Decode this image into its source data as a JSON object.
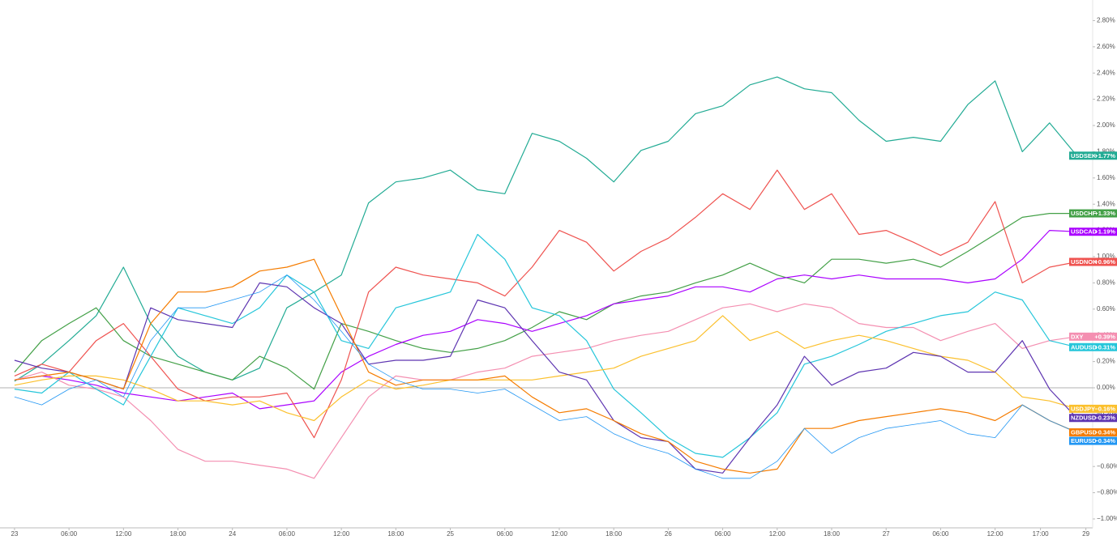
{
  "chart_data": {
    "type": "line",
    "x": [
      0,
      3,
      6,
      9,
      12,
      15,
      18,
      21,
      24,
      27,
      30,
      33,
      36,
      39,
      42,
      45,
      48,
      51,
      54,
      57,
      60,
      63,
      66,
      69,
      72,
      75,
      78,
      81,
      84,
      87,
      90,
      93,
      96,
      99,
      102,
      105,
      108,
      111,
      114,
      117
    ],
    "xlim": [
      -1.6,
      118.75
    ],
    "xticks": [
      {
        "value": 0,
        "label": "23"
      },
      {
        "value": 6,
        "label": "06:00"
      },
      {
        "value": 12,
        "label": "12:00"
      },
      {
        "value": 18,
        "label": "18:00"
      },
      {
        "value": 24,
        "label": "24"
      },
      {
        "value": 30,
        "label": "06:00"
      },
      {
        "value": 36,
        "label": "12:00"
      },
      {
        "value": 42,
        "label": "18:00"
      },
      {
        "value": 48,
        "label": "25"
      },
      {
        "value": 54,
        "label": "06:00"
      },
      {
        "value": 60,
        "label": "12:00"
      },
      {
        "value": 66,
        "label": "18:00"
      },
      {
        "value": 72,
        "label": "26"
      },
      {
        "value": 78,
        "label": "06:00"
      },
      {
        "value": 84,
        "label": "12:00"
      },
      {
        "value": 90,
        "label": "18:00"
      },
      {
        "value": 96,
        "label": "27"
      },
      {
        "value": 102,
        "label": "06:00"
      },
      {
        "value": 108,
        "label": "12:00"
      },
      {
        "value": 113,
        "label": "17:00"
      },
      {
        "value": 118,
        "label": "29"
      }
    ],
    "ylim": [
      -1.068,
      2.957
    ],
    "yticks": [
      {
        "value": -1.0,
        "label": "−1.00%"
      },
      {
        "value": -0.8,
        "label": "−0.80%"
      },
      {
        "value": -0.6,
        "label": "−0.60%"
      },
      {
        "value": -0.4,
        "label": "−0.40%"
      },
      {
        "value": -0.2,
        "label": "−0.20%"
      },
      {
        "value": 0,
        "label": "0.00%"
      },
      {
        "value": 0.2,
        "label": "0.20%"
      },
      {
        "value": 0.4,
        "label": "0.40%"
      },
      {
        "value": 0.6,
        "label": "0.60%"
      },
      {
        "value": 0.8,
        "label": "0.80%"
      },
      {
        "value": 1.0,
        "label": "1.00%"
      },
      {
        "value": 1.2,
        "label": "1.20%"
      },
      {
        "value": 1.4,
        "label": "1.40%"
      },
      {
        "value": 1.6,
        "label": "1.60%"
      },
      {
        "value": 1.8,
        "label": "1.80%"
      },
      {
        "value": 2.0,
        "label": "2.00%"
      },
      {
        "value": 2.2,
        "label": "2.20%"
      },
      {
        "value": 2.4,
        "label": "2.40%"
      },
      {
        "value": 2.6,
        "label": "2.60%"
      },
      {
        "value": 2.8,
        "label": "2.80%"
      }
    ],
    "zero_line": true,
    "series": [
      {
        "name": "USDSEK",
        "color": "#22ab94",
        "last_label": "+1.77%",
        "values": [
          0.05,
          0.18,
          0.36,
          0.55,
          0.92,
          0.49,
          0.24,
          0.12,
          0.06,
          0.15,
          0.61,
          0.73,
          0.86,
          1.41,
          1.57,
          1.6,
          1.66,
          1.51,
          1.48,
          1.94,
          1.88,
          1.75,
          1.57,
          1.81,
          1.88,
          2.09,
          2.15,
          2.31,
          2.37,
          2.28,
          2.25,
          2.04,
          1.88,
          1.91,
          1.88,
          2.16,
          2.34,
          1.8,
          2.02,
          1.77
        ]
      },
      {
        "name": "USDCHF",
        "color": "#43a047",
        "last_label": "+1.33%",
        "values": [
          0.12,
          0.36,
          0.49,
          0.61,
          0.36,
          0.24,
          0.18,
          0.12,
          0.06,
          0.24,
          0.15,
          -0.01,
          0.49,
          0.43,
          0.36,
          0.3,
          0.27,
          0.3,
          0.36,
          0.46,
          0.58,
          0.52,
          0.64,
          0.7,
          0.73,
          0.8,
          0.86,
          0.95,
          0.86,
          0.8,
          0.98,
          0.98,
          0.95,
          0.98,
          0.92,
          1.04,
          1.17,
          1.3,
          1.33,
          1.33
        ]
      },
      {
        "name": "USDCAD",
        "color": "#aa00ff",
        "last_label": "+1.19%",
        "values": [
          0.06,
          0.09,
          0.06,
          0.02,
          -0.04,
          -0.07,
          -0.1,
          -0.07,
          -0.04,
          -0.16,
          -0.13,
          -0.1,
          0.12,
          0.24,
          0.33,
          0.4,
          0.43,
          0.52,
          0.49,
          0.43,
          0.49,
          0.55,
          0.64,
          0.67,
          0.7,
          0.77,
          0.77,
          0.73,
          0.83,
          0.86,
          0.83,
          0.86,
          0.83,
          0.83,
          0.83,
          0.8,
          0.83,
          0.98,
          1.2,
          1.19
        ]
      },
      {
        "name": "USDNOK",
        "color": "#ef5350",
        "last_label": "+0.96%",
        "values": [
          0.09,
          0.18,
          0.12,
          0.36,
          0.49,
          0.24,
          -0.01,
          -0.1,
          -0.07,
          -0.07,
          -0.04,
          -0.38,
          0.06,
          0.73,
          0.92,
          0.86,
          0.83,
          0.8,
          0.7,
          0.92,
          1.2,
          1.11,
          0.89,
          1.04,
          1.14,
          1.3,
          1.48,
          1.36,
          1.66,
          1.36,
          1.48,
          1.17,
          1.2,
          1.11,
          1.01,
          1.11,
          1.42,
          0.8,
          0.92,
          0.96
        ]
      },
      {
        "name": "DXY",
        "color": "#f48fb1",
        "last_label": "+0.39%",
        "values": [
          0.06,
          0.12,
          0.02,
          -0.01,
          -0.07,
          -0.25,
          -0.47,
          -0.56,
          -0.56,
          -0.59,
          -0.62,
          -0.69,
          -0.38,
          -0.07,
          0.09,
          0.06,
          0.06,
          0.12,
          0.15,
          0.24,
          0.27,
          0.3,
          0.36,
          0.4,
          0.43,
          0.52,
          0.61,
          0.64,
          0.58,
          0.64,
          0.61,
          0.49,
          0.46,
          0.46,
          0.36,
          0.43,
          0.49,
          0.3,
          0.36,
          0.39
        ]
      },
      {
        "name": "AUDUSD",
        "color": "#26c6da",
        "last_label": "+0.31%",
        "values": [
          -0.01,
          -0.04,
          0.12,
          -0.01,
          -0.13,
          0.24,
          0.61,
          0.55,
          0.49,
          0.61,
          0.86,
          0.73,
          0.36,
          0.3,
          0.61,
          0.67,
          0.73,
          1.17,
          0.98,
          0.61,
          0.55,
          0.36,
          -0.01,
          -0.19,
          -0.38,
          -0.5,
          -0.53,
          -0.38,
          -0.19,
          0.18,
          0.24,
          0.33,
          0.43,
          0.49,
          0.55,
          0.58,
          0.73,
          0.67,
          0.36,
          0.31
        ]
      },
      {
        "name": "USDJPY",
        "color": "#fbc02d",
        "last_label": "−0.16%",
        "values": [
          0.02,
          0.06,
          0.09,
          0.09,
          0.06,
          -0.01,
          -0.1,
          -0.1,
          -0.13,
          -0.1,
          -0.19,
          -0.25,
          -0.07,
          0.06,
          -0.01,
          0.02,
          0.06,
          0.06,
          0.06,
          0.06,
          0.09,
          0.12,
          0.15,
          0.24,
          0.3,
          0.36,
          0.55,
          0.36,
          0.43,
          0.3,
          0.36,
          0.4,
          0.36,
          0.3,
          0.24,
          0.21,
          0.12,
          -0.07,
          -0.1,
          -0.16
        ]
      },
      {
        "name": "NZDUSD",
        "color": "#5e35b1",
        "last_label": "−0.23%",
        "values": [
          0.21,
          0.15,
          0.12,
          0.06,
          -0.01,
          0.61,
          0.52,
          0.49,
          0.46,
          0.8,
          0.77,
          0.61,
          0.49,
          0.18,
          0.21,
          0.21,
          0.24,
          0.67,
          0.61,
          0.36,
          0.12,
          0.06,
          -0.25,
          -0.38,
          -0.41,
          -0.62,
          -0.65,
          -0.38,
          -0.13,
          0.24,
          0.02,
          0.12,
          0.15,
          0.27,
          0.24,
          0.12,
          0.12,
          0.36,
          -0.01,
          -0.23
        ]
      },
      {
        "name": "GBPUSD",
        "color": "#f57c00",
        "last_label": "−0.34%",
        "values": [
          0.06,
          0.09,
          0.12,
          0.06,
          -0.01,
          0.49,
          0.73,
          0.73,
          0.77,
          0.89,
          0.92,
          0.98,
          0.55,
          0.12,
          0.02,
          0.06,
          0.06,
          0.06,
          0.09,
          -0.07,
          -0.19,
          -0.16,
          -0.25,
          -0.35,
          -0.41,
          -0.56,
          -0.62,
          -0.65,
          -0.62,
          -0.31,
          -0.31,
          -0.25,
          -0.22,
          -0.19,
          -0.16,
          -0.19,
          -0.25,
          -0.13,
          -0.25,
          -0.34
        ]
      },
      {
        "name": "EURUSD",
        "color": "#2196f3",
        "last_label": "−0.34%",
        "values": [
          -0.07,
          -0.13,
          -0.01,
          0.06,
          -0.07,
          0.36,
          0.61,
          0.61,
          0.67,
          0.73,
          0.86,
          0.67,
          0.43,
          0.18,
          0.06,
          -0.01,
          -0.01,
          -0.04,
          -0.01,
          -0.13,
          -0.25,
          -0.22,
          -0.35,
          -0.44,
          -0.5,
          -0.62,
          -0.69,
          -0.69,
          -0.56,
          -0.31,
          -0.5,
          -0.38,
          -0.31,
          -0.28,
          -0.25,
          -0.35,
          -0.38,
          -0.13,
          -0.25,
          -0.34
        ]
      }
    ]
  }
}
